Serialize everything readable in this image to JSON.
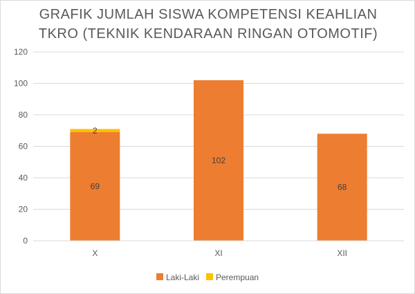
{
  "chart_data": {
    "type": "bar",
    "stacked": true,
    "title_lines": [
      "GRAFIK JUMLAH SISWA KOMPETENSI KEAHLIAN",
      "TKRO (TEKNIK KENDARAAN RINGAN OTOMOTIF)"
    ],
    "categories": [
      "X",
      "XI",
      "XII"
    ],
    "series": [
      {
        "name": "Laki-Laki",
        "values": [
          69,
          102,
          68
        ],
        "color": "#ED7D31"
      },
      {
        "name": "Perempuan",
        "values": [
          2,
          0,
          0
        ],
        "color": "#FFC000"
      }
    ],
    "data_labels": [
      {
        "category": "X",
        "series": "Laki-Laki",
        "text": "69"
      },
      {
        "category": "X",
        "series": "Perempuan",
        "text": "2"
      },
      {
        "category": "XI",
        "series": "Laki-Laki",
        "text": "102"
      },
      {
        "category": "XII",
        "series": "Laki-Laki",
        "text": "68"
      }
    ],
    "ylim": [
      0,
      120
    ],
    "yticks": [
      0,
      20,
      40,
      60,
      80,
      100,
      120
    ],
    "grid": true,
    "legend_position": "bottom",
    "xlabel": "",
    "ylabel": ""
  }
}
